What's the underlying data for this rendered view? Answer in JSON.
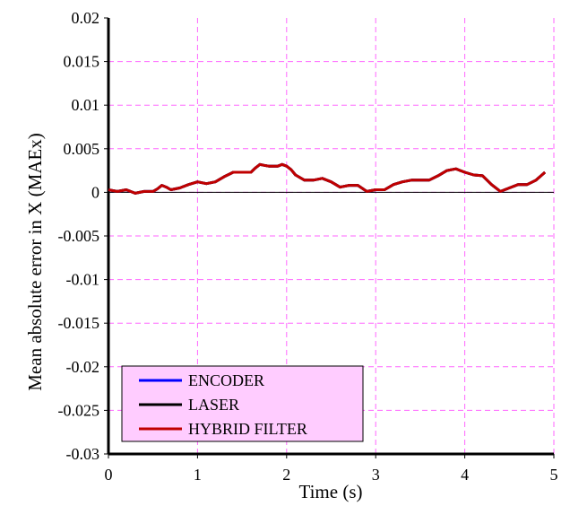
{
  "chart_data": {
    "type": "line",
    "xlabel": "Time (s)",
    "ylabel": "Mean absolute error in X (MAEx)",
    "xlim": [
      0,
      5
    ],
    "ylim": [
      -0.03,
      0.02
    ],
    "x_ticks": [
      "0",
      "1",
      "2",
      "3",
      "4",
      "5"
    ],
    "y_ticks": [
      "0.02",
      "0.015",
      "0.01",
      "0.005",
      "0",
      "-0.005",
      "-0.01",
      "-0.015",
      "-0.02",
      "-0.025",
      "-0.03"
    ],
    "grid": true,
    "legend_position": "bottom-left",
    "series": [
      {
        "name": "ENCODER",
        "color": "#0000ff",
        "x": [
          0,
          0.1,
          0.2,
          0.3,
          0.4,
          0.5,
          0.55,
          0.6,
          0.65,
          0.7,
          0.8,
          0.9,
          1.0,
          1.1,
          1.2,
          1.3,
          1.4,
          1.5,
          1.6,
          1.65,
          1.7,
          1.75,
          1.8,
          1.9,
          1.95,
          2.0,
          2.05,
          2.1,
          2.2,
          2.3,
          2.4,
          2.5,
          2.6,
          2.7,
          2.8,
          2.9,
          3.0,
          3.1,
          3.2,
          3.3,
          3.4,
          3.5,
          3.6,
          3.7,
          3.8,
          3.9,
          3.95,
          4.0,
          4.1,
          4.2,
          4.3,
          4.4,
          4.5,
          4.6,
          4.7,
          4.8,
          4.9
        ],
        "y": [
          0.0003,
          0.0001,
          0.0003,
          -0.0001,
          0.0001,
          0.0001,
          0.0004,
          0.0008,
          0.0006,
          0.0003,
          0.0005,
          0.0009,
          0.0012,
          0.001,
          0.0012,
          0.0018,
          0.0023,
          0.0023,
          0.0023,
          0.0028,
          0.0032,
          0.0031,
          0.003,
          0.003,
          0.0032,
          0.003,
          0.0026,
          0.002,
          0.0014,
          0.0014,
          0.0016,
          0.0012,
          0.0006,
          0.0008,
          0.0008,
          0.0001,
          0.0003,
          0.0003,
          0.0009,
          0.0012,
          0.0014,
          0.0014,
          0.0014,
          0.0019,
          0.0025,
          0.0027,
          0.0025,
          0.0023,
          0.002,
          0.0019,
          0.0009,
          0.0001,
          0.0005,
          0.0009,
          0.0009,
          0.0014,
          0.0023
        ]
      },
      {
        "name": "LASER",
        "color": "#000000",
        "x": [
          0,
          0.1,
          0.2,
          0.3,
          0.4,
          0.5,
          0.55,
          0.6,
          0.65,
          0.7,
          0.8,
          0.9,
          1.0,
          1.1,
          1.2,
          1.3,
          1.4,
          1.5,
          1.6,
          1.65,
          1.7,
          1.75,
          1.8,
          1.9,
          1.95,
          2.0,
          2.05,
          2.1,
          2.2,
          2.3,
          2.4,
          2.5,
          2.6,
          2.7,
          2.8,
          2.9,
          3.0,
          3.1,
          3.2,
          3.3,
          3.4,
          3.5,
          3.6,
          3.7,
          3.8,
          3.9,
          3.95,
          4.0,
          4.1,
          4.2,
          4.3,
          4.4,
          4.5,
          4.6,
          4.7,
          4.8,
          4.9
        ],
        "y": [
          0.0003,
          0.0001,
          0.0003,
          -0.0001,
          0.0001,
          0.0001,
          0.0004,
          0.0008,
          0.0006,
          0.0003,
          0.0005,
          0.0009,
          0.0012,
          0.001,
          0.0012,
          0.0018,
          0.0023,
          0.0023,
          0.0023,
          0.0028,
          0.0032,
          0.0031,
          0.003,
          0.003,
          0.0032,
          0.003,
          0.0026,
          0.002,
          0.0014,
          0.0014,
          0.0016,
          0.0012,
          0.0006,
          0.0008,
          0.0008,
          0.0001,
          0.0003,
          0.0003,
          0.0009,
          0.0012,
          0.0014,
          0.0014,
          0.0014,
          0.0019,
          0.0025,
          0.0027,
          0.0025,
          0.0023,
          0.002,
          0.0019,
          0.0009,
          0.0001,
          0.0005,
          0.0009,
          0.0009,
          0.0014,
          0.0023
        ]
      },
      {
        "name": "HYBRID FILTER",
        "color": "#c00000",
        "x": [
          0,
          0.1,
          0.2,
          0.3,
          0.4,
          0.5,
          0.55,
          0.6,
          0.65,
          0.7,
          0.8,
          0.9,
          1.0,
          1.1,
          1.2,
          1.3,
          1.4,
          1.5,
          1.6,
          1.65,
          1.7,
          1.75,
          1.8,
          1.9,
          1.95,
          2.0,
          2.05,
          2.1,
          2.2,
          2.3,
          2.4,
          2.5,
          2.6,
          2.7,
          2.8,
          2.9,
          3.0,
          3.1,
          3.2,
          3.3,
          3.4,
          3.5,
          3.6,
          3.7,
          3.8,
          3.9,
          3.95,
          4.0,
          4.1,
          4.2,
          4.3,
          4.4,
          4.5,
          4.6,
          4.7,
          4.8,
          4.9
        ],
        "y": [
          0.0003,
          0.0001,
          0.0003,
          -0.0001,
          0.0001,
          0.0001,
          0.0004,
          0.0008,
          0.0006,
          0.0003,
          0.0005,
          0.0009,
          0.0012,
          0.001,
          0.0012,
          0.0018,
          0.0023,
          0.0023,
          0.0023,
          0.0028,
          0.0032,
          0.0031,
          0.003,
          0.003,
          0.0032,
          0.003,
          0.0026,
          0.002,
          0.0014,
          0.0014,
          0.0016,
          0.0012,
          0.0006,
          0.0008,
          0.0008,
          0.0001,
          0.0003,
          0.0003,
          0.0009,
          0.0012,
          0.0014,
          0.0014,
          0.0014,
          0.0019,
          0.0025,
          0.0027,
          0.0025,
          0.0023,
          0.002,
          0.0019,
          0.0009,
          0.0001,
          0.0005,
          0.0009,
          0.0009,
          0.0014,
          0.0023
        ]
      }
    ],
    "colors": {
      "plot_background": "#ffffff",
      "grid": "#ff66ff",
      "legend_background": "#ffccff"
    }
  }
}
